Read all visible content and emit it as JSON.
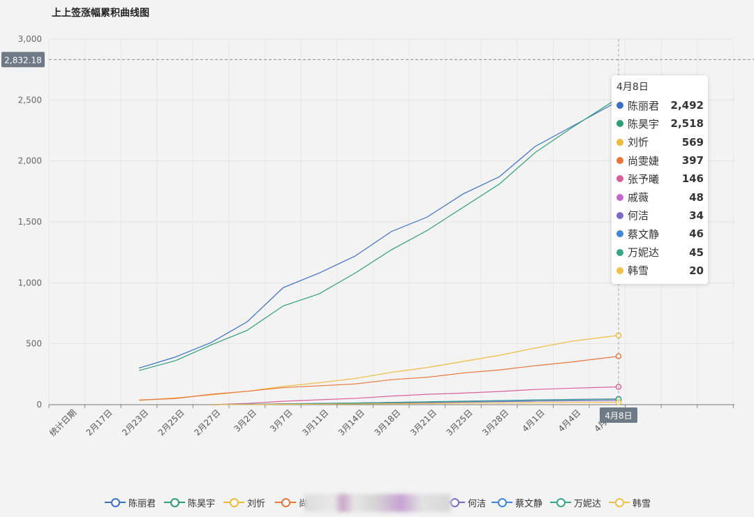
{
  "chart_data": {
    "type": "line",
    "title": "上上签涨幅累积曲线图",
    "ylim": [
      0,
      3000
    ],
    "yticks": [
      "0",
      "500",
      "1,000",
      "1,500",
      "2,000",
      "2,500",
      "3,000"
    ],
    "categories": [
      "统计日期",
      "2月17日",
      "2月23日",
      "2月25日",
      "2月27日",
      "3月2日",
      "3月7日",
      "3月11日",
      "3月14日",
      "3月18日",
      "3月21日",
      "3月25日",
      "3月28日",
      "4月1日",
      "4月4日",
      "4月8日"
    ],
    "axis_pointer": {
      "y_value": "2,832.18",
      "x_label": "4月8日"
    },
    "grid": true,
    "legend_position": "bottom",
    "tooltip": {
      "title": "4月8日",
      "rows": [
        {
          "name": "陈丽君",
          "value": "2,492"
        },
        {
          "name": "陈昊宇",
          "value": "2,518"
        },
        {
          "name": "刘忻",
          "value": "569"
        },
        {
          "name": "尚雯婕",
          "value": "397"
        },
        {
          "name": "张予曦",
          "value": "146"
        },
        {
          "name": "戚薇",
          "value": "48"
        },
        {
          "name": "何洁",
          "value": "34"
        },
        {
          "name": "蔡文静",
          "value": "46"
        },
        {
          "name": "万妮达",
          "value": "45"
        },
        {
          "name": "韩雪",
          "value": "20"
        }
      ]
    },
    "legend_items": [
      "陈丽君",
      "陈昊宇",
      "刘忻",
      "尚",
      "何洁",
      "蔡文静",
      "万妮达",
      "韩雪"
    ],
    "series": [
      {
        "name": "陈丽君",
        "color": "#3b6fc4",
        "values": [
          null,
          null,
          300,
          390,
          510,
          680,
          960,
          1080,
          1220,
          1420,
          1540,
          1730,
          1870,
          2120,
          2280,
          2492
        ]
      },
      {
        "name": "陈昊宇",
        "color": "#2e9e76",
        "values": [
          null,
          null,
          280,
          360,
          490,
          610,
          810,
          910,
          1080,
          1270,
          1430,
          1620,
          1810,
          2070,
          2270,
          2518
        ]
      },
      {
        "name": "刘忻",
        "color": "#f0b93a",
        "values": [
          null,
          null,
          35,
          55,
          80,
          110,
          150,
          180,
          215,
          265,
          305,
          355,
          405,
          465,
          520,
          569
        ]
      },
      {
        "name": "尚雯婕",
        "color": "#e8763a",
        "values": [
          null,
          null,
          38,
          50,
          85,
          110,
          140,
          155,
          170,
          205,
          225,
          260,
          285,
          320,
          350,
          397
        ]
      },
      {
        "name": "张予曦",
        "color": "#d9609a",
        "values": [
          null,
          null,
          null,
          null,
          0,
          10,
          28,
          40,
          52,
          70,
          85,
          95,
          108,
          125,
          135,
          146
        ]
      },
      {
        "name": "戚薇",
        "color": "#c367d0",
        "values": [
          null,
          null,
          null,
          null,
          0,
          3,
          7,
          10,
          14,
          18,
          22,
          27,
          32,
          38,
          43,
          48
        ]
      },
      {
        "name": "何洁",
        "color": "#7a6ac4",
        "values": [
          null,
          null,
          null,
          null,
          0,
          2,
          4,
          7,
          10,
          13,
          17,
          21,
          25,
          29,
          32,
          34
        ]
      },
      {
        "name": "蔡文静",
        "color": "#3e86d6",
        "values": [
          null,
          null,
          null,
          null,
          0,
          3,
          6,
          10,
          14,
          19,
          24,
          29,
          34,
          39,
          43,
          46
        ]
      },
      {
        "name": "万妮达",
        "color": "#37a488",
        "values": [
          null,
          null,
          null,
          null,
          0,
          3,
          6,
          9,
          13,
          18,
          22,
          27,
          32,
          37,
          41,
          45
        ]
      },
      {
        "name": "韩雪",
        "color": "#f0bf4a",
        "values": [
          null,
          null,
          null,
          null,
          0,
          1,
          3,
          4,
          6,
          8,
          10,
          12,
          14,
          16,
          18,
          20
        ]
      }
    ]
  }
}
